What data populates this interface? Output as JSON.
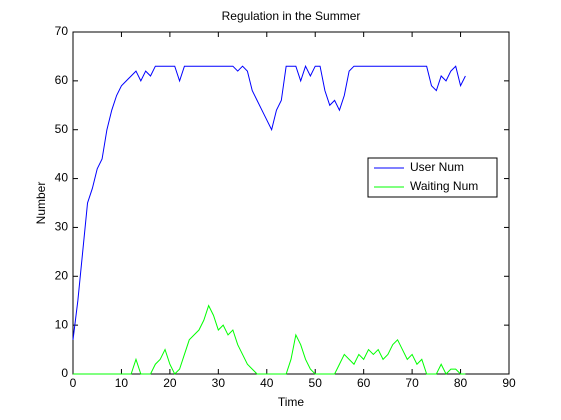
{
  "chart_data": {
    "type": "line",
    "title": "Regulation in the Summer",
    "x_label": "Time",
    "y_label": "Number",
    "x": [
      0,
      1,
      2,
      3,
      4,
      5,
      6,
      7,
      8,
      9,
      10,
      11,
      12,
      13,
      14,
      15,
      16,
      17,
      18,
      19,
      20,
      21,
      22,
      23,
      24,
      25,
      26,
      27,
      28,
      29,
      30,
      31,
      32,
      33,
      34,
      35,
      36,
      37,
      38,
      39,
      40,
      41,
      42,
      43,
      44,
      45,
      46,
      47,
      48,
      49,
      50,
      51,
      52,
      53,
      54,
      55,
      56,
      57,
      58,
      59,
      60,
      61,
      62,
      63,
      64,
      65,
      66,
      67,
      68,
      69,
      70,
      71,
      72,
      73,
      74,
      75,
      76,
      77,
      78,
      79,
      80,
      81
    ],
    "series": [
      {
        "name": "User Num",
        "color": "#0000ff",
        "values": [
          7,
          15,
          25,
          35,
          38,
          42,
          44,
          50,
          54,
          57,
          59,
          60,
          61,
          62,
          60,
          62,
          61,
          63,
          63,
          63,
          63,
          63,
          60,
          63,
          63,
          63,
          63,
          63,
          63,
          63,
          63,
          63,
          63,
          63,
          62,
          63,
          62,
          58,
          56,
          54,
          52,
          50,
          54,
          56,
          63,
          63,
          63,
          60,
          63,
          61,
          63,
          63,
          58,
          55,
          56,
          54,
          57,
          62,
          63,
          63,
          63,
          63,
          63,
          63,
          63,
          63,
          63,
          63,
          63,
          63,
          63,
          63,
          63,
          63,
          59,
          58,
          61,
          60,
          62,
          63,
          59,
          61
        ]
      },
      {
        "name": "Waiting Num",
        "color": "#00ff00",
        "values": [
          0,
          0,
          0,
          0,
          0,
          0,
          0,
          0,
          0,
          0,
          0,
          0,
          0,
          3,
          0,
          0,
          0,
          2,
          3,
          5,
          2,
          0,
          1,
          4,
          7,
          8,
          9,
          11,
          14,
          12,
          9,
          10,
          8,
          9,
          6,
          4,
          2,
          1,
          0,
          0,
          0,
          0,
          0,
          0,
          0,
          3,
          8,
          6,
          3,
          1,
          0,
          0,
          0,
          0,
          0,
          2,
          4,
          3,
          2,
          4,
          3,
          5,
          4,
          5,
          3,
          4,
          6,
          7,
          5,
          3,
          4,
          2,
          3,
          0,
          0,
          0,
          2,
          0,
          1,
          1,
          0,
          0
        ]
      }
    ],
    "xlim": [
      0,
      90
    ],
    "ylim": [
      0,
      70
    ],
    "xticks": [
      0,
      10,
      20,
      30,
      40,
      50,
      60,
      70,
      80,
      90
    ],
    "yticks": [
      0,
      10,
      20,
      30,
      40,
      50,
      60,
      70
    ],
    "legend": "right"
  }
}
